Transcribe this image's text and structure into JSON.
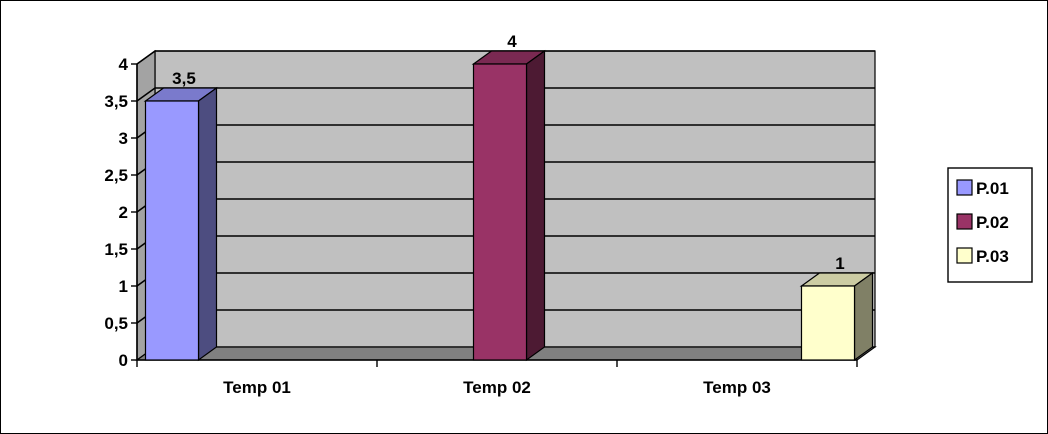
{
  "chart_data": {
    "type": "bar",
    "categories": [
      "Temp 01",
      "Temp 02",
      "Temp 03"
    ],
    "series": [
      {
        "name": "P.01",
        "values": [
          3.5,
          null,
          null
        ],
        "color": "#9999ff"
      },
      {
        "name": "P.02",
        "values": [
          null,
          4,
          null
        ],
        "color": "#993366"
      },
      {
        "name": "P.03",
        "values": [
          null,
          null,
          1
        ],
        "color": "#ffffcc"
      }
    ],
    "data_labels": [
      "3,5",
      "4",
      "1"
    ],
    "y_ticks": [
      "0",
      "0,5",
      "1",
      "1,5",
      "2",
      "2,5",
      "3",
      "3,5",
      "4"
    ],
    "ylim": [
      0,
      4
    ],
    "grid": true,
    "legend": "right",
    "plot_background": "#c0c0c0"
  }
}
